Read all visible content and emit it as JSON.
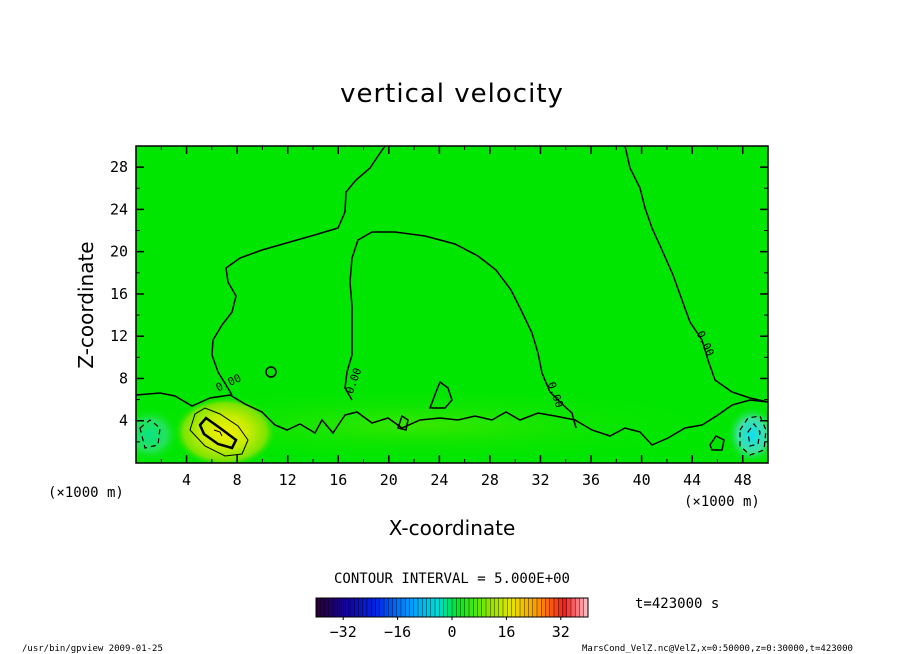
{
  "chart_data": {
    "type": "heatmap",
    "title": "vertical velocity",
    "xlabel": "X-coordinate",
    "ylabel": "Z-coordinate",
    "x_unit": "(×1000 m)",
    "y_unit": "(×1000 m)",
    "xlim": [
      0,
      50
    ],
    "ylim": [
      0,
      30
    ],
    "x_ticks": [
      "4",
      "8",
      "12",
      "16",
      "20",
      "24",
      "28",
      "32",
      "36",
      "40",
      "44",
      "48"
    ],
    "y_ticks": [
      "4",
      "8",
      "12",
      "16",
      "20",
      "24",
      "28"
    ],
    "contour_interval_text": "CONTOUR INTERVAL = 5.000E+00",
    "contour_labels": [
      "0.00",
      "0.00",
      "0.00",
      "0.00"
    ],
    "colorbar": {
      "min": -40,
      "max": 40,
      "ticks": [
        "−32",
        "−16",
        "0",
        "16",
        "32"
      ]
    },
    "time_label": "t=423000 s",
    "footer_left": "/usr/bin/gpview 2009-01-25",
    "footer_right": "MarsCond_VelZ.nc@VelZ,x=0:50000,z=0:30000,t=423000",
    "colors": {
      "field": "#00e600",
      "positive": "#f0f000",
      "negative": "#20d0d0"
    }
  }
}
